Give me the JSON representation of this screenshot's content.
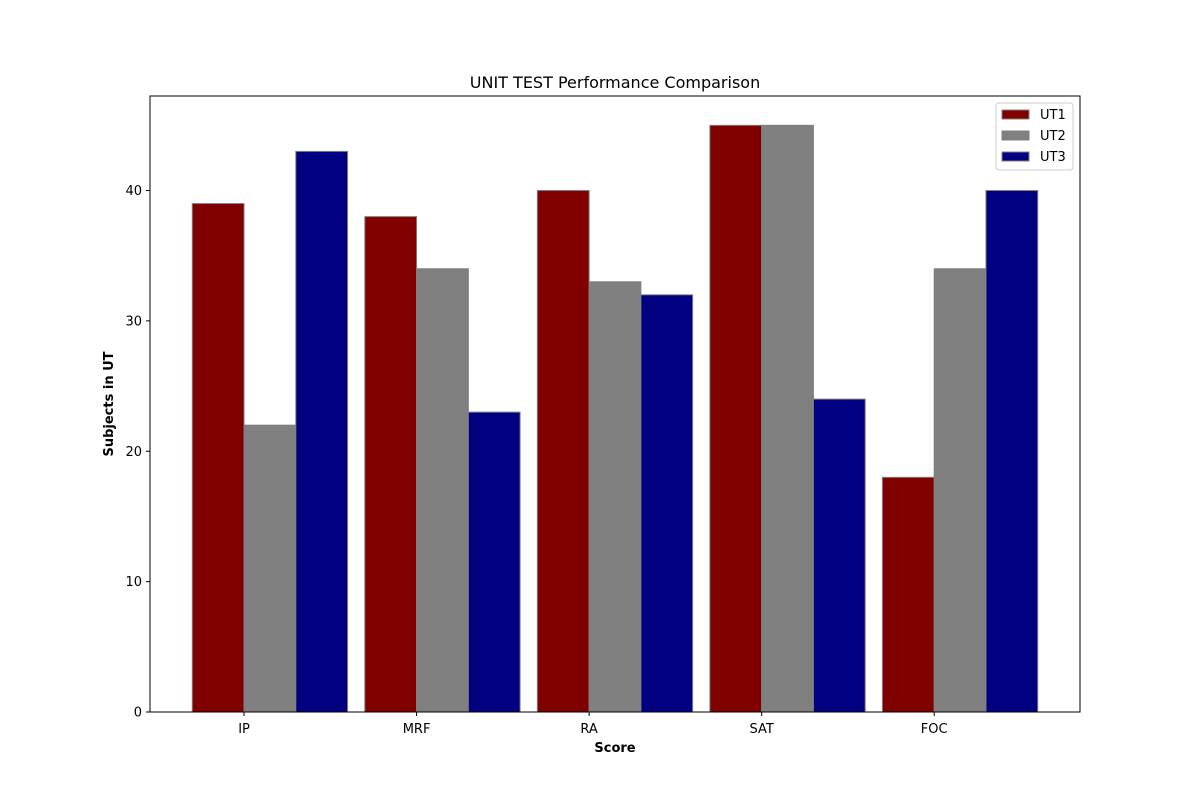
{
  "chart_data": {
    "type": "bar",
    "title": "UNIT TEST Performance Comparison",
    "xlabel": "Score",
    "ylabel": "Subjects in UT",
    "categories": [
      "IP",
      "MRF",
      "RA",
      "SAT",
      "FOC"
    ],
    "series": [
      {
        "name": "UT1",
        "values": [
          39,
          38,
          40,
          45,
          18
        ],
        "color": "#800000"
      },
      {
        "name": "UT2",
        "values": [
          22,
          34,
          33,
          45,
          34
        ],
        "color": "#808080"
      },
      {
        "name": "UT3",
        "values": [
          43,
          23,
          32,
          24,
          40
        ],
        "color": "#000080"
      }
    ],
    "ylim": [
      0,
      47.25
    ],
    "yticks": [
      0,
      10,
      20,
      30,
      40
    ],
    "grid": false,
    "legend_position": "top-right",
    "bar_edge_color": "#808080"
  }
}
